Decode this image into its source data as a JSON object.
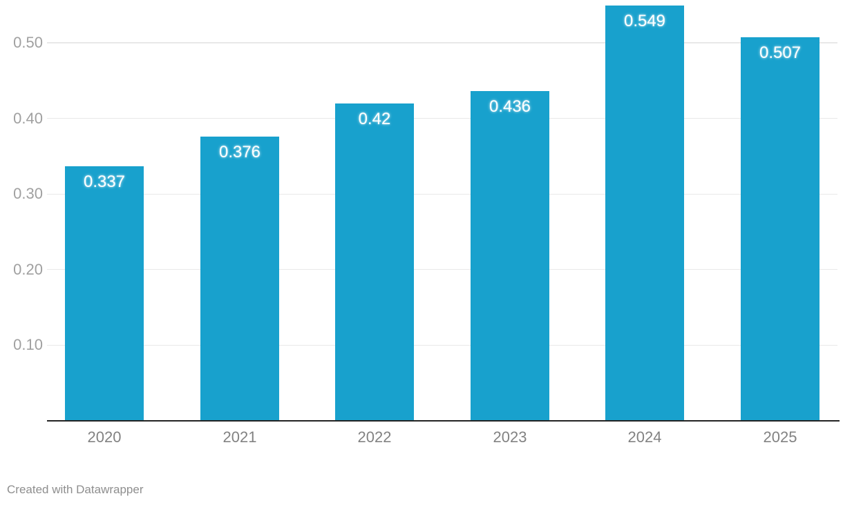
{
  "chart_data": {
    "type": "bar",
    "categories": [
      "2020",
      "2021",
      "2022",
      "2023",
      "2024",
      "2025"
    ],
    "values": [
      0.337,
      0.376,
      0.42,
      0.436,
      0.549,
      0.507
    ],
    "bar_labels": [
      "0.337",
      "0.376",
      "0.42",
      "0.436",
      "0.549",
      "0.507"
    ],
    "title": "",
    "xlabel": "",
    "ylabel": "",
    "ylim": [
      0,
      0.557
    ],
    "yticks": [
      {
        "value": 0.1,
        "label": "0.10"
      },
      {
        "value": 0.2,
        "label": "0.20"
      },
      {
        "value": 0.3,
        "label": "0.30"
      },
      {
        "value": 0.4,
        "label": "0.40"
      },
      {
        "value": 0.5,
        "label": "0.50"
      }
    ],
    "grid": true,
    "legend": "none",
    "bar_color": "#18a1cd",
    "bar_label_color": "#ffffff"
  },
  "colors": {
    "background": "#ffffff",
    "grid": "#e8e8e8",
    "axis_line": "#222222",
    "ytick_text": "#a0a0a0",
    "xtick_text": "#828282",
    "footer_text": "#8e8e8e"
  },
  "footer": {
    "attribution": "Created with Datawrapper"
  }
}
